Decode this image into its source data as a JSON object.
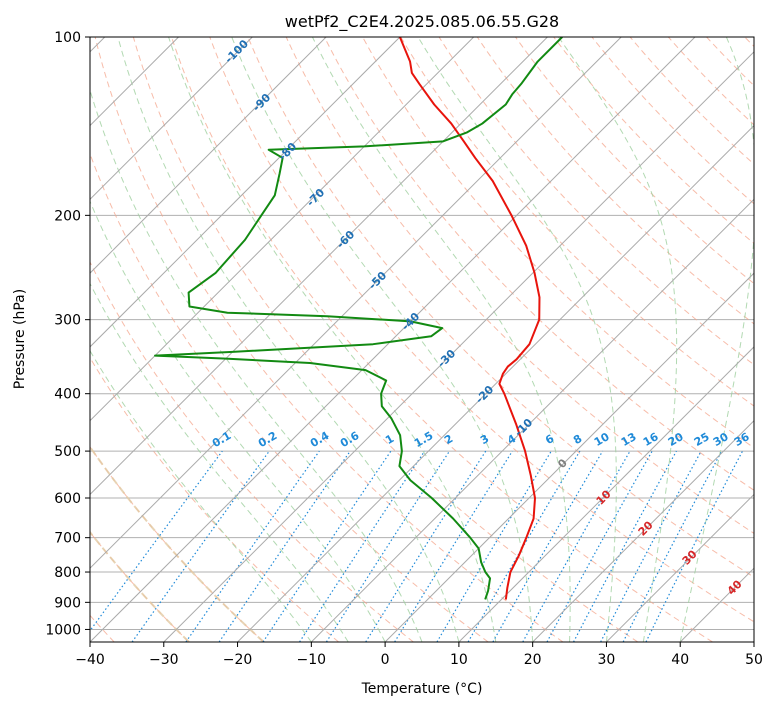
{
  "chart_data": {
    "type": "line",
    "title": "wetPf2_C2E4.2025.085.06.55.G28",
    "xlabel": "Temperature (°C)",
    "ylabel": "Pressure (hPa)",
    "xlim": [
      -40,
      50
    ],
    "ylim": [
      1050,
      100
    ],
    "yscale": "log",
    "skew": true,
    "x_ticks": [
      -40,
      -30,
      -20,
      -10,
      0,
      10,
      20,
      30,
      40,
      50
    ],
    "y_ticks": [
      100,
      200,
      300,
      400,
      500,
      600,
      700,
      800,
      900,
      1000
    ],
    "grid": "horizontal at pressure ticks; skewed isotherms every 10 °C",
    "colors": {
      "temperature": "#e8140c",
      "dewpoint": "#128a12",
      "dry_adiabat": "#f4a68c",
      "moist_adiabat": "#9fcf9f",
      "mixing_ratio": "#1f8ad8",
      "isotherm": "#aaaaaa",
      "extra_dry": "#e2c9a3",
      "label_blue": "#2070b4",
      "label_mix": "#1f8ad8",
      "label_red": "#d62728",
      "label_gray": "#7f7f7f"
    },
    "series": [
      {
        "name": "",
        "color": "#e8140c",
        "points": [
          {
            "p": 890,
            "t": 10.6
          },
          {
            "p": 850,
            "t": 9.2
          },
          {
            "p": 800,
            "t": 7.5
          },
          {
            "p": 750,
            "t": 6.4
          },
          {
            "p": 700,
            "t": 5.0
          },
          {
            "p": 650,
            "t": 3.4
          },
          {
            "p": 600,
            "t": 0.8
          },
          {
            "p": 550,
            "t": -2.8
          },
          {
            "p": 500,
            "t": -6.9
          },
          {
            "p": 450,
            "t": -11.8
          },
          {
            "p": 400,
            "t": -17.5
          },
          {
            "p": 385,
            "t": -19.5
          },
          {
            "p": 370,
            "t": -20.4
          },
          {
            "p": 360,
            "t": -20.7
          },
          {
            "p": 350,
            "t": -20.5
          },
          {
            "p": 330,
            "t": -20.8
          },
          {
            "p": 300,
            "t": -22.8
          },
          {
            "p": 275,
            "t": -25.8
          },
          {
            "p": 250,
            "t": -29.8
          },
          {
            "p": 225,
            "t": -34.6
          },
          {
            "p": 200,
            "t": -40.7
          },
          {
            "p": 175,
            "t": -47.9
          },
          {
            "p": 160,
            "t": -53.4
          },
          {
            "p": 150,
            "t": -57.2
          },
          {
            "p": 140,
            "t": -61.3
          },
          {
            "p": 130,
            "t": -66.2
          },
          {
            "p": 120,
            "t": -71.0
          },
          {
            "p": 115,
            "t": -73.5
          },
          {
            "p": 110,
            "t": -75.3
          },
          {
            "p": 105,
            "t": -77.6
          },
          {
            "p": 100,
            "t": -80.0
          }
        ]
      },
      {
        "name": "",
        "color": "#128a12",
        "points": [
          {
            "p": 890,
            "t": 7.8
          },
          {
            "p": 860,
            "t": 7.0
          },
          {
            "p": 820,
            "t": 5.6
          },
          {
            "p": 800,
            "t": 4.1
          },
          {
            "p": 770,
            "t": 2.2
          },
          {
            "p": 730,
            "t": 0.0
          },
          {
            "p": 700,
            "t": -2.6
          },
          {
            "p": 650,
            "t": -7.5
          },
          {
            "p": 600,
            "t": -13.2
          },
          {
            "p": 560,
            "t": -18.5
          },
          {
            "p": 530,
            "t": -21.9
          },
          {
            "p": 500,
            "t": -23.6
          },
          {
            "p": 470,
            "t": -26.0
          },
          {
            "p": 440,
            "t": -29.5
          },
          {
            "p": 420,
            "t": -32.4
          },
          {
            "p": 400,
            "t": -34.2
          },
          {
            "p": 380,
            "t": -35.3
          },
          {
            "p": 365,
            "t": -39.5
          },
          {
            "p": 355,
            "t": -48.0
          },
          {
            "p": 349,
            "t": -60.0
          },
          {
            "p": 345,
            "t": -70.0
          },
          {
            "p": 340,
            "t": -60.0
          },
          {
            "p": 330,
            "t": -42.0
          },
          {
            "p": 320,
            "t": -35.2
          },
          {
            "p": 310,
            "t": -34.8
          },
          {
            "p": 302,
            "t": -40.0
          },
          {
            "p": 296,
            "t": -52.0
          },
          {
            "p": 292,
            "t": -66.0
          },
          {
            "p": 285,
            "t": -72.0
          },
          {
            "p": 270,
            "t": -74.0
          },
          {
            "p": 250,
            "t": -73.0
          },
          {
            "p": 220,
            "t": -73.5
          },
          {
            "p": 200,
            "t": -74.6
          },
          {
            "p": 185,
            "t": -75.5
          },
          {
            "p": 170,
            "t": -77.8
          },
          {
            "p": 160,
            "t": -79.5
          },
          {
            "p": 155,
            "t": -82.5
          },
          {
            "p": 153,
            "t": -70.0
          },
          {
            "p": 150,
            "t": -60.0
          },
          {
            "p": 145,
            "t": -58.0
          },
          {
            "p": 140,
            "t": -57.1
          },
          {
            "p": 130,
            "t": -56.5
          },
          {
            "p": 125,
            "t": -57.0
          },
          {
            "p": 120,
            "t": -57.2
          },
          {
            "p": 110,
            "t": -58.0
          },
          {
            "p": 100,
            "t": -58.0
          }
        ]
      }
    ],
    "isotherm_labels": [
      "-100",
      "-90",
      "-80",
      "-70",
      "-60",
      "-50",
      "-40",
      "-30",
      "-20",
      "-10",
      "0",
      "10",
      "20",
      "30",
      "40"
    ],
    "mixing_ratio_labels": [
      "0.1",
      "0.2",
      "0.4",
      "0.6",
      "1",
      "1.5",
      "2",
      "3",
      "4",
      "6",
      "8",
      "10",
      "13",
      "16",
      "20",
      "25",
      "30",
      "36"
    ],
    "mixing_ratio_values": [
      0.1,
      0.2,
      0.4,
      0.6,
      1,
      1.5,
      2,
      3,
      4,
      6,
      8,
      10,
      13,
      16,
      20,
      25,
      30,
      36
    ]
  }
}
